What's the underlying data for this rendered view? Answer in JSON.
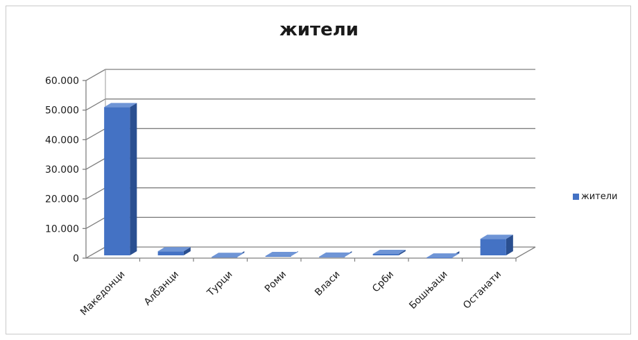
{
  "chart_data": {
    "type": "bar",
    "title": "жители",
    "xlabel": "",
    "ylabel": "",
    "categories": [
      "Македонци",
      "Албанци",
      "Турци",
      "Роми",
      "Власи",
      "Срби",
      "Бошњаци",
      "Останати"
    ],
    "series": [
      {
        "name": "жители",
        "values": [
          51000,
          2300,
          400,
          700,
          500,
          1400,
          200,
          6500
        ],
        "color": "#4472c4"
      }
    ],
    "ylim": [
      0,
      60000
    ],
    "yticks": [
      "0",
      "10.000",
      "20.000",
      "30.000",
      "40.000",
      "50.000",
      "60.000"
    ],
    "grid": true,
    "legend_position": "right",
    "style": "3d-bar"
  }
}
